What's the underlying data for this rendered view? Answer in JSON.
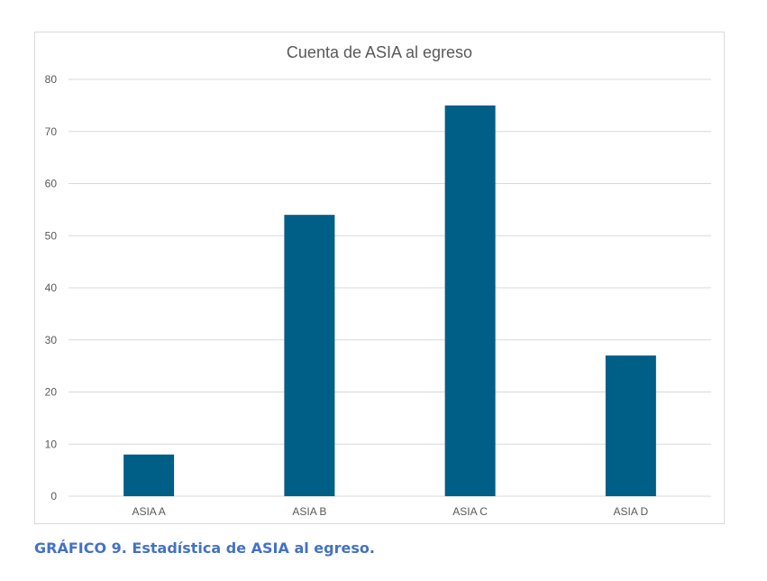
{
  "chart_data": {
    "type": "bar",
    "title": "Cuenta de ASIA al egreso",
    "categories": [
      "ASIA A",
      "ASIA B",
      "ASIA C",
      "ASIA D"
    ],
    "values": [
      8,
      54,
      75,
      27
    ],
    "ylim": [
      0,
      80
    ],
    "yticks": [
      0,
      10,
      20,
      30,
      40,
      50,
      60,
      70,
      80
    ],
    "grid": true,
    "legend": "none",
    "bar_color": "#005f87",
    "grid_color": "#d9d9d9",
    "tick_label_color": "#595959"
  },
  "caption": "GRÁFICO 9. Estadística de ASIA al egreso."
}
